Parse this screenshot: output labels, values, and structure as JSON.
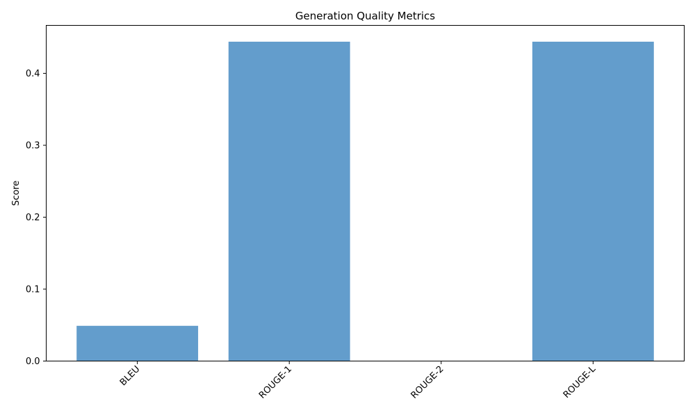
{
  "chart_data": {
    "type": "bar",
    "title": "Generation Quality Metrics",
    "xlabel": "",
    "ylabel": "Score",
    "categories": [
      "BLEU",
      "ROUGE-1",
      "ROUGE-2",
      "ROUGE-L"
    ],
    "values": [
      0.049,
      0.444,
      0.0,
      0.444
    ],
    "ylim": [
      0,
      0.4667
    ],
    "yticks": [
      "0.0",
      "0.1",
      "0.2",
      "0.3",
      "0.4"
    ],
    "bar_color": "#4c8fc4",
    "bar_opacity": 0.87,
    "grid": false,
    "xtick_rotation_deg": 45
  }
}
